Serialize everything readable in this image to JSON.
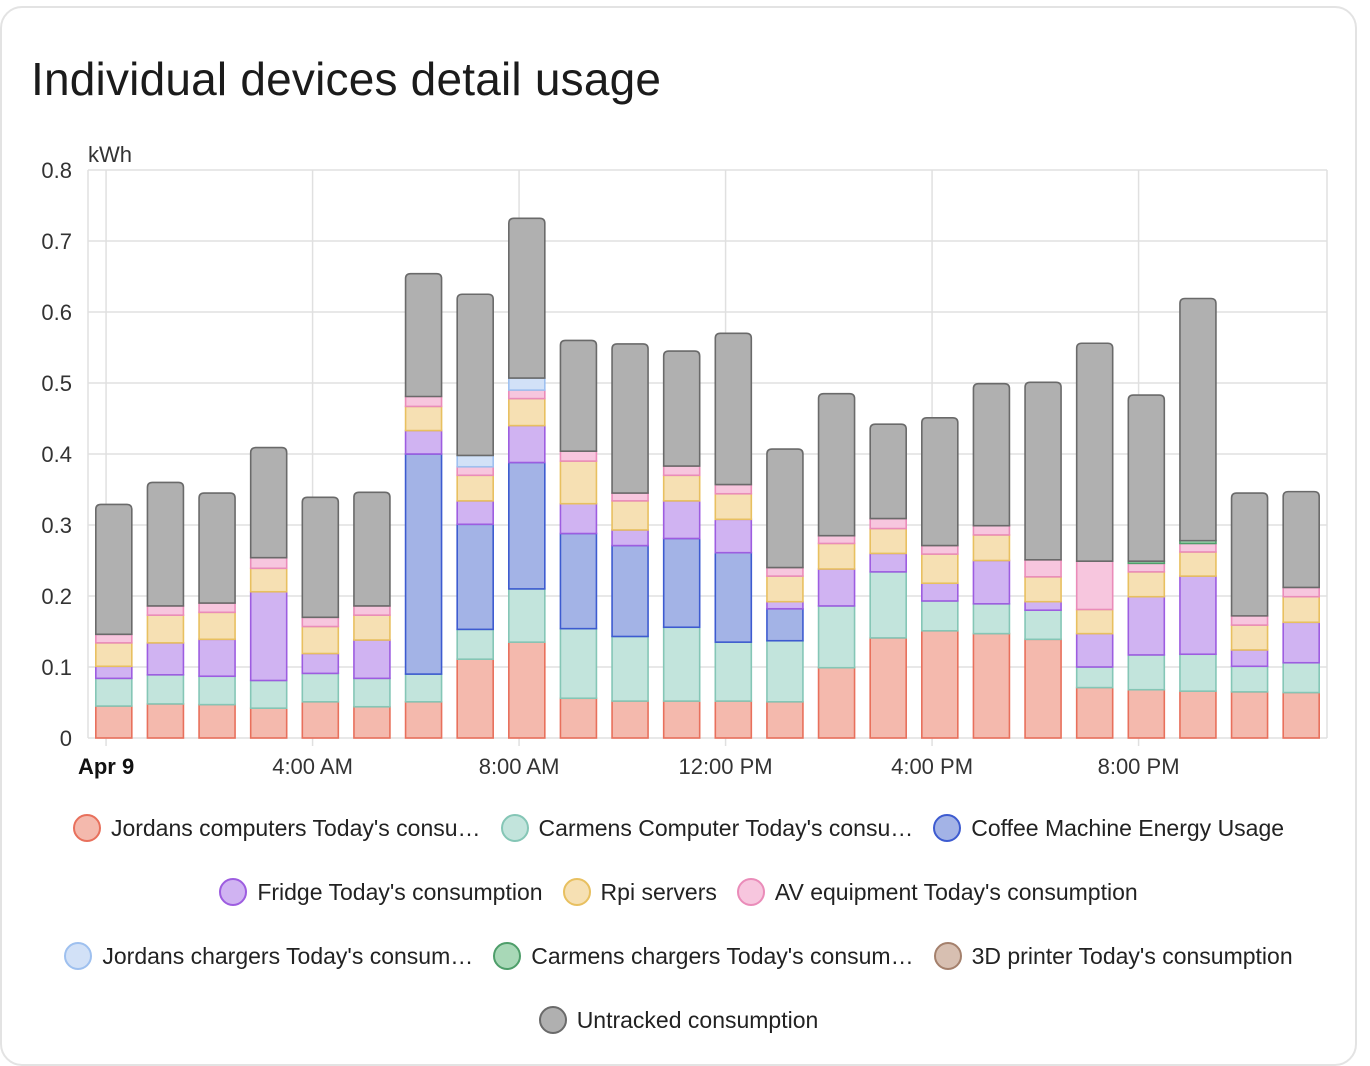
{
  "card": {
    "title": "Individual devices detail usage"
  },
  "chart_data": {
    "type": "bar",
    "stacked": true,
    "ylabel": "kWh",
    "ylim": [
      0,
      0.8
    ],
    "yticks": [
      "0",
      "0.1",
      "0.2",
      "0.3",
      "0.4",
      "0.5",
      "0.6",
      "0.7",
      "0.8"
    ],
    "xtick_labels": [
      {
        "label": "Apr 9",
        "hour": 0,
        "bold": true
      },
      {
        "label": "4:00 AM",
        "hour": 4,
        "bold": false
      },
      {
        "label": "8:00 AM",
        "hour": 8,
        "bold": false
      },
      {
        "label": "12:00 PM",
        "hour": 12,
        "bold": false
      },
      {
        "label": "4:00 PM",
        "hour": 16,
        "bold": false
      },
      {
        "label": "8:00 PM",
        "hour": 20,
        "bold": false
      }
    ],
    "hours": [
      0,
      1,
      2,
      3,
      4,
      5,
      6,
      7,
      8,
      9,
      10,
      11,
      12,
      13,
      14,
      15,
      16,
      17,
      18,
      19,
      20,
      21,
      22,
      23
    ],
    "grid": true,
    "legend_position": "bottom",
    "series": [
      {
        "name": "Jordans computers Today's consu…",
        "fill": "#f4b9ad",
        "stroke": "#e8705c",
        "values": [
          0.045,
          0.048,
          0.047,
          0.042,
          0.051,
          0.044,
          0.051,
          0.111,
          0.135,
          0.056,
          0.052,
          0.052,
          0.052,
          0.051,
          0.099,
          0.141,
          0.151,
          0.147,
          0.139,
          0.071,
          0.068,
          0.066,
          0.065,
          0.064
        ]
      },
      {
        "name": "Carmens Computer Today's consu…",
        "fill": "#c2e4dc",
        "stroke": "#85c6b6",
        "values": [
          0.039,
          0.041,
          0.04,
          0.039,
          0.04,
          0.04,
          0.039,
          0.042,
          0.075,
          0.098,
          0.091,
          0.104,
          0.083,
          0.086,
          0.087,
          0.093,
          0.042,
          0.042,
          0.041,
          0.029,
          0.049,
          0.052,
          0.036,
          0.042
        ]
      },
      {
        "name": "Coffee Machine Energy Usage",
        "fill": "#a3b3e6",
        "stroke": "#3d5bd0",
        "values": [
          0,
          0,
          0,
          0,
          0,
          0,
          0.31,
          0.148,
          0.178,
          0.134,
          0.128,
          0.125,
          0.126,
          0.045,
          0,
          0,
          0,
          0,
          0,
          0,
          0,
          0,
          0,
          0
        ]
      },
      {
        "name": "Fridge Today's consumption",
        "fill": "#d0b3f2",
        "stroke": "#9d5de0",
        "values": [
          0.017,
          0.045,
          0.052,
          0.125,
          0.028,
          0.054,
          0.033,
          0.033,
          0.052,
          0.042,
          0.022,
          0.053,
          0.047,
          0.01,
          0.052,
          0.026,
          0.025,
          0.061,
          0.012,
          0.047,
          0.082,
          0.11,
          0.023,
          0.057
        ]
      },
      {
        "name": "Rpi servers",
        "fill": "#f6e0b3",
        "stroke": "#e8c060",
        "values": [
          0.033,
          0.039,
          0.038,
          0.033,
          0.038,
          0.035,
          0.034,
          0.036,
          0.038,
          0.06,
          0.041,
          0.036,
          0.036,
          0.036,
          0.036,
          0.035,
          0.041,
          0.036,
          0.035,
          0.034,
          0.035,
          0.034,
          0.035,
          0.036
        ]
      },
      {
        "name": "AV equipment Today's consumption",
        "fill": "#f7c6de",
        "stroke": "#ea8cb9",
        "values": [
          0.012,
          0.013,
          0.013,
          0.015,
          0.013,
          0.013,
          0.014,
          0.012,
          0.012,
          0.014,
          0.011,
          0.013,
          0.013,
          0.012,
          0.011,
          0.014,
          0.012,
          0.013,
          0.024,
          0.068,
          0.012,
          0.012,
          0.013,
          0.013
        ]
      },
      {
        "name": "Jordans chargers Today's consum…",
        "fill": "#d2e1f7",
        "stroke": "#9ec0ef",
        "values": [
          0,
          0,
          0,
          0,
          0,
          0,
          0,
          0.016,
          0.017,
          0,
          0,
          0,
          0,
          0,
          0,
          0,
          0,
          0,
          0,
          0,
          0,
          0,
          0,
          0
        ]
      },
      {
        "name": "Carmens chargers Today's consum…",
        "fill": "#a8d8b7",
        "stroke": "#4e9e6a",
        "values": [
          0,
          0,
          0,
          0,
          0,
          0,
          0,
          0,
          0,
          0,
          0,
          0,
          0,
          0,
          0,
          0,
          0,
          0,
          0,
          0,
          0.003,
          0.004,
          0,
          0
        ]
      },
      {
        "name": "3D printer Today's consumption",
        "fill": "#d7bfb1",
        "stroke": "#a4806c",
        "values": [
          0,
          0,
          0,
          0,
          0,
          0,
          0,
          0,
          0,
          0,
          0,
          0,
          0,
          0,
          0,
          0,
          0,
          0,
          0,
          0,
          0,
          0,
          0,
          0
        ]
      },
      {
        "name": "Untracked consumption",
        "fill": "#b0b0b0",
        "stroke": "#6a6a6a",
        "values": [
          0.183,
          0.174,
          0.155,
          0.155,
          0.169,
          0.16,
          0.173,
          0.227,
          0.225,
          0.156,
          0.21,
          0.162,
          0.213,
          0.167,
          0.2,
          0.133,
          0.18,
          0.2,
          0.25,
          0.307,
          0.234,
          0.341,
          0.173,
          0.135
        ]
      }
    ]
  },
  "legend": {
    "rows": [
      [
        0,
        1,
        2
      ],
      [
        3,
        4,
        5
      ],
      [
        6,
        7,
        8
      ],
      [
        9
      ]
    ]
  }
}
